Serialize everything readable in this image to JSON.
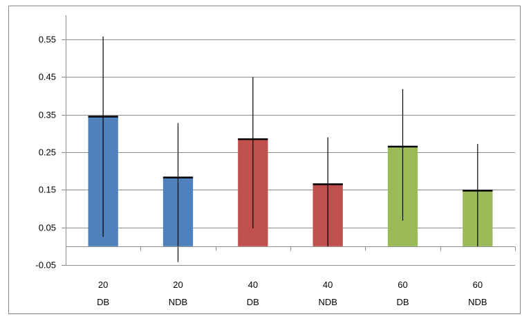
{
  "chart_data": {
    "type": "bar",
    "categories": [
      [
        "20",
        "DB"
      ],
      [
        "20",
        "NDB"
      ],
      [
        "40",
        "DB"
      ],
      [
        "40",
        "NDB"
      ],
      [
        "60",
        "DB"
      ],
      [
        "60",
        "NDB"
      ]
    ],
    "values": [
      0.345,
      0.183,
      0.285,
      0.165,
      0.265,
      0.148
    ],
    "error_low": [
      0.025,
      -0.042,
      0.048,
      -0.002,
      0.068,
      -0.002
    ],
    "error_high": [
      0.558,
      0.328,
      0.45,
      0.29,
      0.418,
      0.272
    ],
    "bar_colors": [
      "#4f81bd",
      "#4f81bd",
      "#c0504d",
      "#c0504d",
      "#9bbb59",
      "#9bbb59"
    ],
    "y_ticks": [
      -0.05,
      0.05,
      0.15,
      0.25,
      0.35,
      0.45,
      0.55
    ],
    "y_tick_labels": [
      "-0.05",
      "0.05",
      "0.15",
      "0.25",
      "0.35",
      "0.45",
      "0.55"
    ],
    "ylim": [
      -0.05,
      0.6
    ],
    "grid": true,
    "legend": "none",
    "title": "",
    "xlabel": "",
    "ylabel": ""
  }
}
